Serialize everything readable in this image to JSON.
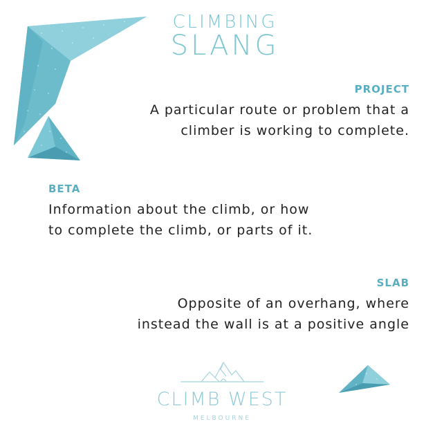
{
  "header": {
    "title_top": "CLIMBING",
    "title_bottom": "SLANG"
  },
  "entries": [
    {
      "term": "PROJECT",
      "definition_lines": [
        "A particular route or problem that a",
        "climber is working to complete."
      ]
    },
    {
      "term": "BETA",
      "definition_lines": [
        "Information about the climb, or how",
        "to complete the climb, or parts of it."
      ]
    },
    {
      "term": "SLAB",
      "definition_lines": [
        "Opposite of an overhang, where",
        "instead the wall is at a positive angle"
      ]
    }
  ],
  "logo": {
    "name": "CLIMB WEST",
    "subtitle": "MELBOURNE",
    "icon": "mountain-icon"
  },
  "colors": {
    "accent": "#5aaec0",
    "title": "#7ec6d3",
    "hold_light": "#7cc7d5",
    "hold_dark": "#4a9db1",
    "text": "#222222",
    "background": "#ffffff"
  },
  "decorations": [
    "boomerang-hold-icon",
    "triangle-hold-icon",
    "triangle-hold-icon"
  ]
}
